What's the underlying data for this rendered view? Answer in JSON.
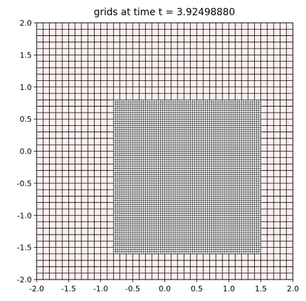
{
  "chart_data": {
    "type": "grid",
    "title": "grids at time t =     3.92498880",
    "xlabel": "",
    "ylabel": "",
    "xlim": [
      -2.0,
      2.0
    ],
    "ylim": [
      -2.0,
      2.0
    ],
    "xticks": [
      "-2.0",
      "-1.5",
      "-1.0",
      "-0.5",
      "0.0",
      "0.5",
      "1.0",
      "1.5",
      "2.0"
    ],
    "yticks": [
      "2.0",
      "1.5",
      "1.0",
      "0.5",
      "0.0",
      "-0.5",
      "-1.0",
      "-1.5",
      "-2.0"
    ],
    "grid_levels": [
      {
        "level": 0,
        "x_range": [
          -2.0,
          2.0
        ],
        "y_range": [
          -2.0,
          2.0
        ],
        "cells_x": 40,
        "cells_y": 40,
        "fill": "#fff0f0",
        "line_color": "#000000"
      },
      {
        "level": 1,
        "x_range": [
          -0.8,
          1.5
        ],
        "y_range": [
          -1.6,
          0.8
        ],
        "cells_x": 69,
        "cells_y": 72,
        "fill": "#f3f3f3",
        "line_color": "#000000"
      }
    ]
  }
}
